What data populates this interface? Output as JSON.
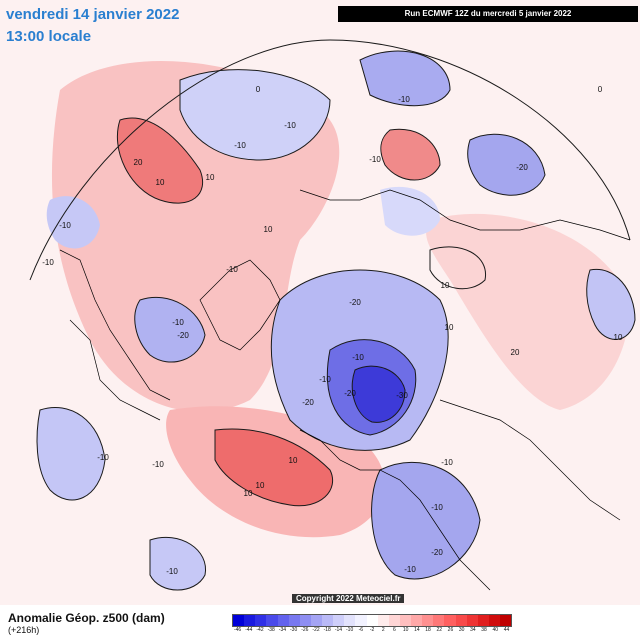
{
  "header": {
    "date": "vendredi 14 janvier 2022",
    "time": "13:00 locale",
    "run_info": "Run ECMWF 12Z du mercredi 5 janvier 2022"
  },
  "footer": {
    "product_title": "Anomalie Géop. z500 (dam)",
    "lead_time": "(+216h)",
    "copyright": "Copyright 2022 Meteociel.fr"
  },
  "colorbar": {
    "labels": [
      "-46",
      "-44",
      "-42",
      "-38",
      "-34",
      "-30",
      "-26",
      "-22",
      "-18",
      "-14",
      "-10",
      "-6",
      "-2",
      "2",
      "6",
      "10",
      "14",
      "18",
      "22",
      "26",
      "30",
      "34",
      "38",
      "40",
      "44"
    ],
    "colors": [
      "#0000d8",
      "#1a1ae0",
      "#3030e6",
      "#4a4aea",
      "#6262ee",
      "#7878f0",
      "#8e8ef2",
      "#a4a4f4",
      "#babaf7",
      "#cfcffa",
      "#e2e2fc",
      "#f2f2ff",
      "#ffffff",
      "#ffecec",
      "#ffd6d6",
      "#ffbfbf",
      "#ffa8a8",
      "#ff9090",
      "#ff7878",
      "#ff6060",
      "#f84a4a",
      "#ee3434",
      "#e01e1e",
      "#d00c0c",
      "#c00000"
    ]
  },
  "contour_labels": [
    "0",
    "-10",
    "-10",
    "-10",
    "-10",
    "-10",
    "10",
    "10",
    "20",
    "10",
    "-10",
    "10",
    "-10",
    "-20",
    "-20",
    "10",
    "-10",
    "-20",
    "-20",
    "10",
    "-10",
    "-20",
    "-10",
    "-30",
    "-10",
    "10",
    "-10",
    "-10",
    "10",
    "20",
    "10",
    "-10",
    "-10",
    "-20",
    "0",
    "-10"
  ],
  "map_colors": {
    "land_lines": "#000000",
    "warm_light": "#fbd8d8",
    "warm": "#f6a0a0",
    "warm_strong": "#ee6a6a",
    "cold_light": "#dde0fb",
    "cold": "#a6aaf2",
    "cold_strong": "#6e6ee8",
    "cold_core": "#3d3ad8"
  }
}
